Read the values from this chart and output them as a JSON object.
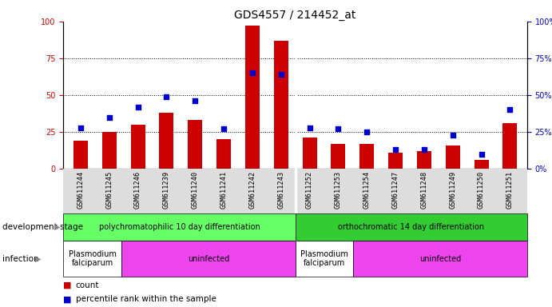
{
  "title": "GDS4557 / 214452_at",
  "samples": [
    "GSM611244",
    "GSM611245",
    "GSM611246",
    "GSM611239",
    "GSM611240",
    "GSM611241",
    "GSM611242",
    "GSM611243",
    "GSM611252",
    "GSM611253",
    "GSM611254",
    "GSM611247",
    "GSM611248",
    "GSM611249",
    "GSM611250",
    "GSM611251"
  ],
  "count_values": [
    19,
    25,
    30,
    38,
    33,
    20,
    97,
    87,
    21,
    17,
    17,
    11,
    12,
    16,
    6,
    31
  ],
  "percentile_values": [
    28,
    35,
    42,
    49,
    46,
    27,
    65,
    64,
    28,
    27,
    25,
    13,
    13,
    23,
    10,
    40
  ],
  "bar_color": "#cc0000",
  "dot_color": "#0000cc",
  "ylim": [
    0,
    100
  ],
  "yticks": [
    0,
    25,
    50,
    75,
    100
  ],
  "grid_lines": [
    25,
    50,
    75
  ],
  "dev_stage_groups": [
    {
      "label": "polychromatophilic 10 day differentiation",
      "start": 0,
      "end": 8,
      "color": "#66ff66"
    },
    {
      "label": "orthochromatic 14 day differentiation",
      "start": 8,
      "end": 16,
      "color": "#33cc33"
    }
  ],
  "infection_groups": [
    {
      "label": "Plasmodium\nfalciparum",
      "start": 0,
      "end": 2,
      "color": "#ffffff"
    },
    {
      "label": "uninfected",
      "start": 2,
      "end": 8,
      "color": "#ee44ee"
    },
    {
      "label": "Plasmodium\nfalciparum",
      "start": 8,
      "end": 10,
      "color": "#ffffff"
    },
    {
      "label": "uninfected",
      "start": 10,
      "end": 16,
      "color": "#ee44ee"
    }
  ],
  "dev_stage_label": "development stage",
  "infection_label": "infection",
  "legend_count_label": "count",
  "legend_pct_label": "percentile rank within the sample",
  "bar_color_hex": "#cc0000",
  "dot_color_hex": "#0000cc",
  "tick_fontsize": 7,
  "title_fontsize": 10,
  "sep_index": 7.5,
  "n_samples": 16
}
